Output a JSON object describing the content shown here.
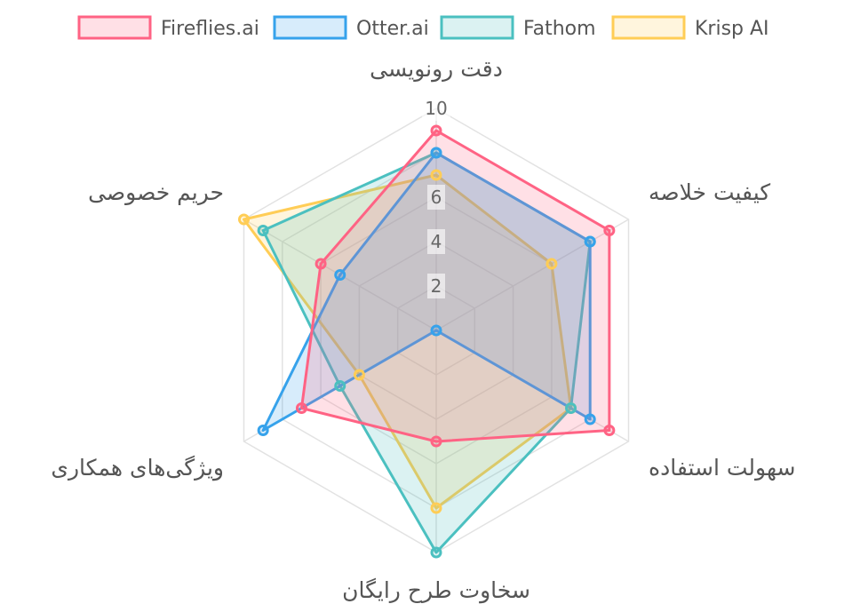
{
  "chart_data": {
    "type": "radar",
    "axes": [
      "دقت رونویسی",
      "کیفیت خلاصه",
      "سهولت استفاده",
      "سخاوت طرح رایگان",
      "ویژگی‌های همکاری",
      "حریم خصوصی"
    ],
    "r_range": [
      0,
      10
    ],
    "ticks": [
      "2",
      "4",
      "6",
      "10"
    ],
    "grid": true,
    "legend_position": "top",
    "series": [
      {
        "name": "Fireflies.ai",
        "values": [
          9,
          9,
          9,
          5,
          7,
          6
        ],
        "color": "#ff6384",
        "fill": "rgba(255,99,132,0.2)"
      },
      {
        "name": "Otter.ai",
        "values": [
          8,
          8,
          8,
          0,
          9,
          5
        ],
        "color": "#36a2eb",
        "fill": "rgba(54,162,235,0.2)"
      },
      {
        "name": "Fathom",
        "values": [
          8,
          8,
          7,
          10,
          5,
          9
        ],
        "color": "#4bc0c0",
        "fill": "rgba(75,192,192,0.2)"
      },
      {
        "name": "Krisp AI",
        "values": [
          7,
          6,
          7,
          8,
          4,
          10
        ],
        "color": "#ffcd56",
        "fill": "rgba(255,205,86,0.2)"
      }
    ]
  }
}
